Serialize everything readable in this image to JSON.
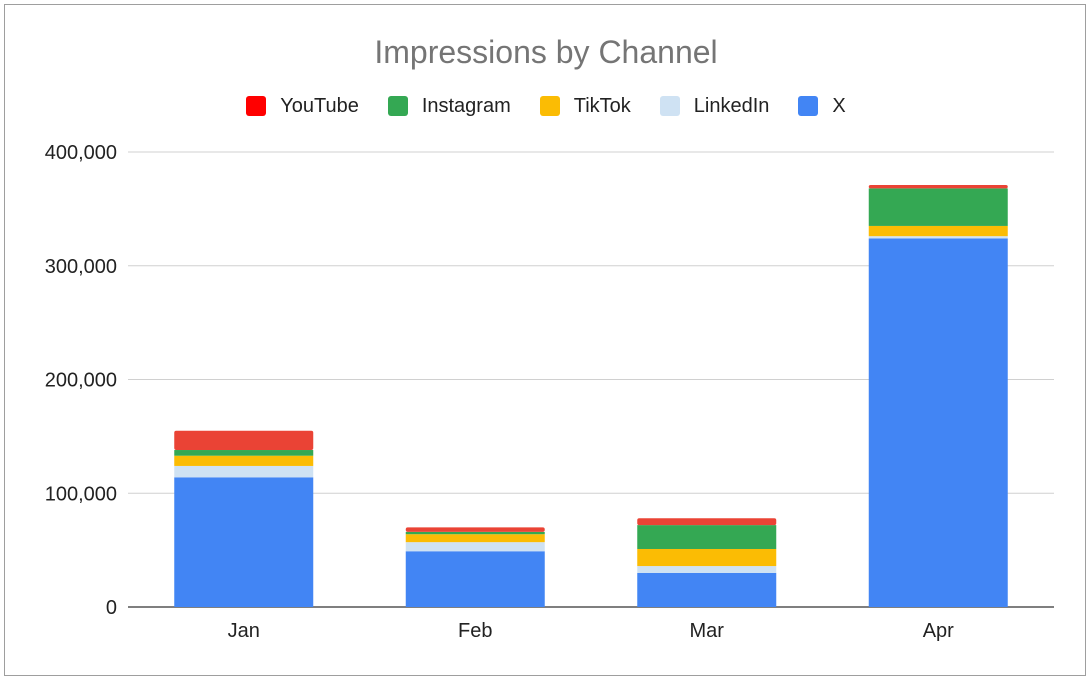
{
  "chart_data": {
    "type": "bar",
    "stacked": true,
    "title": "Impressions by Channel",
    "xlabel": "",
    "ylabel": "",
    "ylim": [
      0,
      400000
    ],
    "y_ticks": [
      0,
      100000,
      200000,
      300000,
      400000
    ],
    "y_tick_labels": [
      "0",
      "100,000",
      "200,000",
      "300,000",
      "400,000"
    ],
    "categories": [
      "Jan",
      "Feb",
      "Mar",
      "Apr"
    ],
    "legend_position": "top",
    "grid": true,
    "series": [
      {
        "name": "X",
        "color": "#4285F4",
        "values": [
          114000,
          49000,
          30000,
          324000
        ]
      },
      {
        "name": "LinkedIn",
        "color": "#CFE2F3",
        "values": [
          10000,
          8000,
          6000,
          2000
        ]
      },
      {
        "name": "TikTok",
        "color": "#FBBC04",
        "values": [
          9000,
          7000,
          15000,
          9000
        ]
      },
      {
        "name": "Instagram",
        "color": "#34A853",
        "values": [
          5000,
          2000,
          21000,
          33000
        ]
      },
      {
        "name": "YouTube",
        "color": "#EA4335",
        "values": [
          17000,
          4000,
          6000,
          3000
        ]
      }
    ],
    "legend_order": [
      "YouTube",
      "Instagram",
      "TikTok",
      "LinkedIn",
      "X"
    ]
  }
}
